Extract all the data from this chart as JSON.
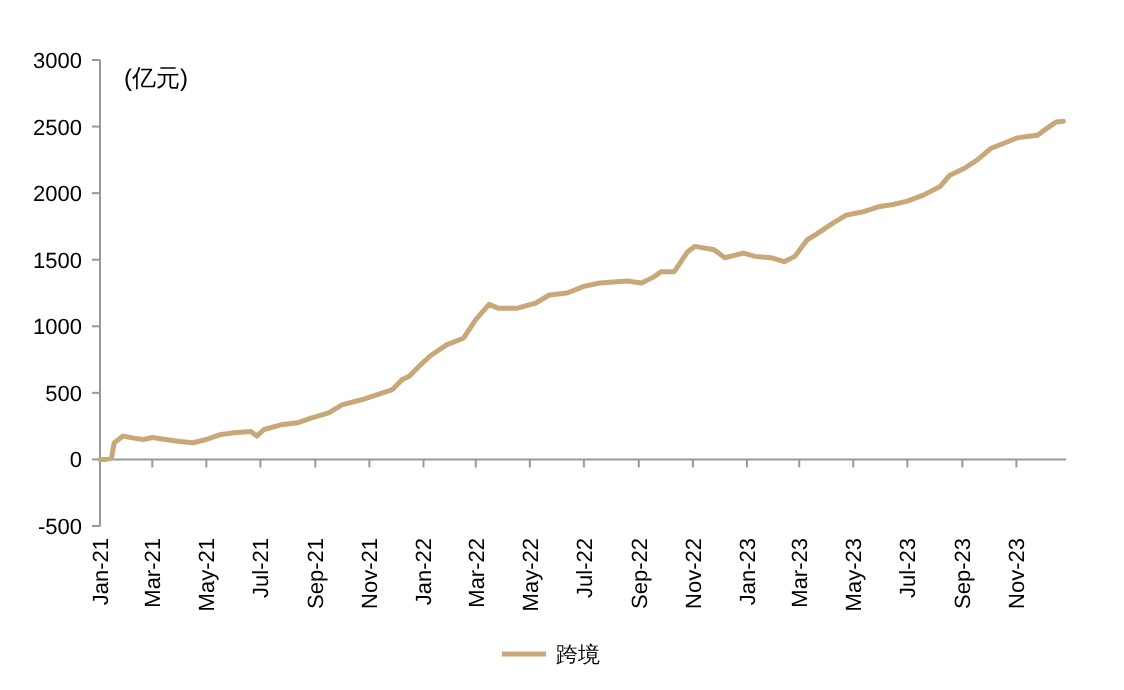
{
  "chart_data": {
    "type": "line",
    "ylabel": "(亿元)",
    "legend": "bottom",
    "x": [
      "2021-01-01",
      "2021-01-08",
      "2021-01-14",
      "2021-01-17",
      "2021-01-27",
      "2021-02-08",
      "2021-02-19",
      "2021-03-01",
      "2021-03-16",
      "2021-04-01",
      "2021-04-16",
      "2021-05-01",
      "2021-05-16",
      "2021-06-01",
      "2021-06-20",
      "2021-06-27",
      "2021-07-05",
      "2021-07-24",
      "2021-08-12",
      "2021-08-27",
      "2021-09-16",
      "2021-10-01",
      "2021-10-24",
      "2021-11-16",
      "2021-11-27",
      "2021-12-08",
      "2021-12-16",
      "2021-12-27",
      "2022-01-08",
      "2022-01-27",
      "2022-02-15",
      "2022-03-01",
      "2022-03-16",
      "2022-03-27",
      "2022-04-16",
      "2022-05-08",
      "2022-05-23",
      "2022-06-12",
      "2022-07-01",
      "2022-07-19",
      "2022-08-19",
      "2022-09-04",
      "2022-09-19",
      "2022-09-26",
      "2022-10-11",
      "2022-10-26",
      "2022-11-03",
      "2022-11-25",
      "2022-12-07",
      "2022-12-28",
      "2023-01-10",
      "2023-01-28",
      "2023-02-12",
      "2023-02-24",
      "2023-03-10",
      "2023-03-20",
      "2023-04-08",
      "2023-04-23",
      "2023-05-12",
      "2023-05-31",
      "2023-06-15",
      "2023-07-01",
      "2023-07-19",
      "2023-08-07",
      "2023-08-18",
      "2023-09-03",
      "2023-09-18",
      "2023-10-03",
      "2023-10-18",
      "2023-11-02",
      "2023-11-13",
      "2023-11-25",
      "2023-12-05",
      "2023-12-16",
      "2023-12-24"
    ],
    "series": [
      {
        "name": "跨境",
        "color": "#c8a878",
        "values": [
          0,
          0,
          10,
          125,
          175,
          160,
          150,
          165,
          150,
          135,
          125,
          150,
          185,
          200,
          210,
          175,
          225,
          260,
          275,
          310,
          350,
          410,
          450,
          500,
          525,
          600,
          625,
          700,
          775,
          860,
          910,
          1050,
          1165,
          1135,
          1135,
          1175,
          1235,
          1250,
          1300,
          1325,
          1340,
          1325,
          1375,
          1410,
          1410,
          1560,
          1600,
          1575,
          1515,
          1550,
          1525,
          1515,
          1485,
          1525,
          1650,
          1690,
          1775,
          1835,
          1860,
          1900,
          1915,
          1940,
          1985,
          2050,
          2135,
          2185,
          2250,
          2335,
          2375,
          2415,
          2425,
          2435,
          2485,
          2535,
          2540
        ]
      }
    ],
    "xlim": [
      "2021-01-01",
      "2023-12-27"
    ],
    "ylim": [
      -500,
      3000
    ],
    "yticks": [
      -500,
      0,
      500,
      1000,
      1500,
      2000,
      2500,
      3000
    ],
    "xticks": [
      {
        "value": "2021-01-01",
        "label": "Jan-21"
      },
      {
        "value": "2021-03-01",
        "label": "Mar-21"
      },
      {
        "value": "2021-05-01",
        "label": "May-21"
      },
      {
        "value": "2021-07-01",
        "label": "Jul-21"
      },
      {
        "value": "2021-09-01",
        "label": "Sep-21"
      },
      {
        "value": "2021-11-01",
        "label": "Nov-21"
      },
      {
        "value": "2022-01-01",
        "label": "Jan-22"
      },
      {
        "value": "2022-03-01",
        "label": "Mar-22"
      },
      {
        "value": "2022-05-01",
        "label": "May-22"
      },
      {
        "value": "2022-07-01",
        "label": "Jul-22"
      },
      {
        "value": "2022-09-01",
        "label": "Sep-22"
      },
      {
        "value": "2022-11-01",
        "label": "Nov-22"
      },
      {
        "value": "2023-01-01",
        "label": "Jan-23"
      },
      {
        "value": "2023-03-01",
        "label": "Mar-23"
      },
      {
        "value": "2023-05-01",
        "label": "May-23"
      },
      {
        "value": "2023-07-01",
        "label": "Jul-23"
      },
      {
        "value": "2023-09-01",
        "label": "Sep-23"
      },
      {
        "value": "2023-11-01",
        "label": "Nov-23"
      }
    ]
  }
}
